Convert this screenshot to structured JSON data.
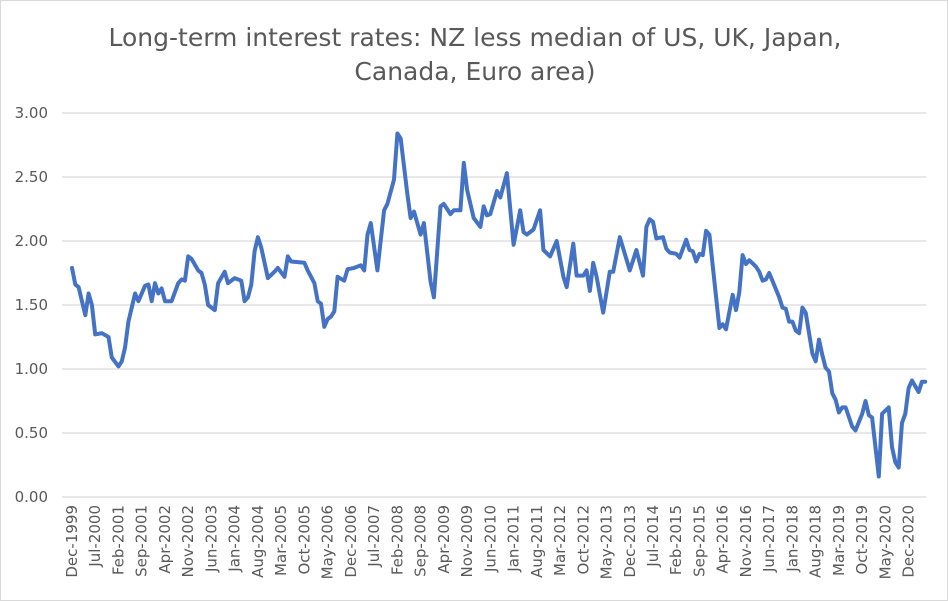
{
  "chart_data": {
    "type": "line",
    "title": "Long-term interest rates: NZ less median of US, UK, Japan, Canada, Euro area)",
    "title_lines": [
      "Long-term interest rates: NZ less median of US, UK, Japan,",
      "Canada, Euro area)"
    ],
    "xlabel": "",
    "ylabel": "",
    "ylim": [
      0,
      3
    ],
    "yticks": [
      "0.00",
      "0.50",
      "1.00",
      "1.50",
      "2.00",
      "2.50",
      "3.00"
    ],
    "xticks": [
      "Dec-1999",
      "Jul-2000",
      "Feb-2001",
      "Sep-2001",
      "Apr-2002",
      "Nov-2002",
      "Jun-2003",
      "Jan-2004",
      "Aug-2004",
      "Mar-2005",
      "Oct-2005",
      "May-2006",
      "Dec-2006",
      "Jul-2007",
      "Feb-2008",
      "Sep-2008",
      "Apr-2009",
      "Nov-2009",
      "Jun-2010",
      "Jan-2011",
      "Aug-2011",
      "Mar-2012",
      "Oct-2012",
      "May-2013",
      "Dec-2013",
      "Jul-2014",
      "Feb-2015",
      "Sep-2015",
      "Apr-2016",
      "Nov-2016",
      "Jun-2017",
      "Jan-2018",
      "Aug-2018",
      "Mar-2019",
      "Oct-2019",
      "May-2020",
      "Dec-2020"
    ],
    "grid": "horizontal",
    "legend": "none",
    "line_color": "#4472c4",
    "series": [
      {
        "points": [
          [
            "1999-12",
            1.79
          ],
          [
            "2000-01",
            1.66
          ],
          [
            "2000-02",
            1.64
          ],
          [
            "2000-04",
            1.42
          ],
          [
            "2000-05",
            1.59
          ],
          [
            "2000-06",
            1.5
          ],
          [
            "2000-07",
            1.27
          ],
          [
            "2000-09",
            1.28
          ],
          [
            "2000-11",
            1.25
          ],
          [
            "2000-12",
            1.09
          ],
          [
            "2001-02",
            1.02
          ],
          [
            "2001-03",
            1.06
          ],
          [
            "2001-04",
            1.17
          ],
          [
            "2001-05",
            1.37
          ],
          [
            "2001-07",
            1.59
          ],
          [
            "2001-08",
            1.53
          ],
          [
            "2001-10",
            1.65
          ],
          [
            "2001-11",
            1.66
          ],
          [
            "2001-12",
            1.53
          ],
          [
            "2002-01",
            1.67
          ],
          [
            "2002-02",
            1.59
          ],
          [
            "2002-03",
            1.63
          ],
          [
            "2002-04",
            1.53
          ],
          [
            "2002-06",
            1.53
          ],
          [
            "2002-08",
            1.67
          ],
          [
            "2002-09",
            1.7
          ],
          [
            "2002-10",
            1.69
          ],
          [
            "2002-11",
            1.88
          ],
          [
            "2002-12",
            1.86
          ],
          [
            "2003-02",
            1.77
          ],
          [
            "2003-03",
            1.75
          ],
          [
            "2003-04",
            1.66
          ],
          [
            "2003-05",
            1.5
          ],
          [
            "2003-07",
            1.46
          ],
          [
            "2003-08",
            1.67
          ],
          [
            "2003-10",
            1.76
          ],
          [
            "2003-11",
            1.67
          ],
          [
            "2004-01",
            1.71
          ],
          [
            "2004-03",
            1.69
          ],
          [
            "2004-04",
            1.53
          ],
          [
            "2004-05",
            1.56
          ],
          [
            "2004-06",
            1.66
          ],
          [
            "2004-07",
            1.92
          ],
          [
            "2004-08",
            2.03
          ],
          [
            "2004-09",
            1.95
          ],
          [
            "2004-11",
            1.71
          ],
          [
            "2005-01",
            1.76
          ],
          [
            "2005-02",
            1.79
          ],
          [
            "2005-04",
            1.72
          ],
          [
            "2005-05",
            1.88
          ],
          [
            "2005-06",
            1.84
          ],
          [
            "2005-10",
            1.83
          ],
          [
            "2005-11",
            1.77
          ],
          [
            "2006-01",
            1.67
          ],
          [
            "2006-02",
            1.53
          ],
          [
            "2006-03",
            1.51
          ],
          [
            "2006-04",
            1.33
          ],
          [
            "2006-05",
            1.39
          ],
          [
            "2006-06",
            1.41
          ],
          [
            "2006-07",
            1.45
          ],
          [
            "2006-08",
            1.72
          ],
          [
            "2006-10",
            1.69
          ],
          [
            "2006-11",
            1.78
          ],
          [
            "2007-01",
            1.79
          ],
          [
            "2007-03",
            1.81
          ],
          [
            "2007-04",
            1.77
          ],
          [
            "2007-05",
            2.05
          ],
          [
            "2007-06",
            2.14
          ],
          [
            "2007-08",
            1.77
          ],
          [
            "2007-10",
            2.24
          ],
          [
            "2007-11",
            2.29
          ],
          [
            "2008-01",
            2.48
          ],
          [
            "2008-02",
            2.84
          ],
          [
            "2008-03",
            2.8
          ],
          [
            "2008-05",
            2.37
          ],
          [
            "2008-06",
            2.18
          ],
          [
            "2008-07",
            2.23
          ],
          [
            "2008-09",
            2.05
          ],
          [
            "2008-10",
            2.14
          ],
          [
            "2008-12",
            1.68
          ],
          [
            "2009-01",
            1.56
          ],
          [
            "2009-03",
            2.27
          ],
          [
            "2009-04",
            2.29
          ],
          [
            "2009-06",
            2.21
          ],
          [
            "2009-07",
            2.24
          ],
          [
            "2009-09",
            2.24
          ],
          [
            "2009-10",
            2.61
          ],
          [
            "2009-11",
            2.4
          ],
          [
            "2010-01",
            2.18
          ],
          [
            "2010-03",
            2.11
          ],
          [
            "2010-04",
            2.27
          ],
          [
            "2010-05",
            2.2
          ],
          [
            "2010-06",
            2.21
          ],
          [
            "2010-08",
            2.39
          ],
          [
            "2010-09",
            2.34
          ],
          [
            "2010-11",
            2.53
          ],
          [
            "2011-01",
            1.97
          ],
          [
            "2011-03",
            2.24
          ],
          [
            "2011-04",
            2.07
          ],
          [
            "2011-05",
            2.05
          ],
          [
            "2011-07",
            2.09
          ],
          [
            "2011-09",
            2.24
          ],
          [
            "2011-10",
            1.93
          ],
          [
            "2011-12",
            1.88
          ],
          [
            "2012-02",
            2.0
          ],
          [
            "2012-04",
            1.72
          ],
          [
            "2012-05",
            1.64
          ],
          [
            "2012-07",
            1.98
          ],
          [
            "2012-08",
            1.73
          ],
          [
            "2012-10",
            1.73
          ],
          [
            "2012-11",
            1.77
          ],
          [
            "2012-12",
            1.61
          ],
          [
            "2013-01",
            1.83
          ],
          [
            "2013-02",
            1.72
          ],
          [
            "2013-04",
            1.44
          ],
          [
            "2013-06",
            1.76
          ],
          [
            "2013-07",
            1.76
          ],
          [
            "2013-09",
            2.03
          ],
          [
            "2013-12",
            1.77
          ],
          [
            "2014-01",
            1.85
          ],
          [
            "2014-02",
            1.93
          ],
          [
            "2014-04",
            1.73
          ],
          [
            "2014-05",
            2.11
          ],
          [
            "2014-06",
            2.17
          ],
          [
            "2014-07",
            2.15
          ],
          [
            "2014-08",
            2.02
          ],
          [
            "2014-10",
            2.03
          ],
          [
            "2014-11",
            1.94
          ],
          [
            "2014-12",
            1.91
          ],
          [
            "2015-02",
            1.9
          ],
          [
            "2015-03",
            1.87
          ],
          [
            "2015-05",
            2.01
          ],
          [
            "2015-06",
            1.93
          ],
          [
            "2015-07",
            1.92
          ],
          [
            "2015-08",
            1.84
          ],
          [
            "2015-09",
            1.9
          ],
          [
            "2015-10",
            1.89
          ],
          [
            "2015-11",
            2.08
          ],
          [
            "2015-12",
            2.05
          ],
          [
            "2016-03",
            1.32
          ],
          [
            "2016-04",
            1.35
          ],
          [
            "2016-05",
            1.31
          ],
          [
            "2016-07",
            1.58
          ],
          [
            "2016-08",
            1.46
          ],
          [
            "2016-09",
            1.6
          ],
          [
            "2016-10",
            1.89
          ],
          [
            "2016-11",
            1.82
          ],
          [
            "2016-12",
            1.85
          ],
          [
            "2017-02",
            1.8
          ],
          [
            "2017-03",
            1.76
          ],
          [
            "2017-04",
            1.69
          ],
          [
            "2017-05",
            1.7
          ],
          [
            "2017-06",
            1.75
          ],
          [
            "2017-09",
            1.56
          ],
          [
            "2017-10",
            1.48
          ],
          [
            "2017-11",
            1.47
          ],
          [
            "2017-12",
            1.37
          ],
          [
            "2018-01",
            1.37
          ],
          [
            "2018-02",
            1.3
          ],
          [
            "2018-03",
            1.28
          ],
          [
            "2018-04",
            1.48
          ],
          [
            "2018-05",
            1.44
          ],
          [
            "2018-07",
            1.12
          ],
          [
            "2018-08",
            1.06
          ],
          [
            "2018-09",
            1.23
          ],
          [
            "2018-10",
            1.11
          ],
          [
            "2018-11",
            1.01
          ],
          [
            "2018-12",
            0.98
          ],
          [
            "2019-01",
            0.81
          ],
          [
            "2019-02",
            0.76
          ],
          [
            "2019-03",
            0.66
          ],
          [
            "2019-04",
            0.7
          ],
          [
            "2019-05",
            0.7
          ],
          [
            "2019-07",
            0.55
          ],
          [
            "2019-08",
            0.52
          ],
          [
            "2019-10",
            0.65
          ],
          [
            "2019-11",
            0.75
          ],
          [
            "2019-12",
            0.64
          ],
          [
            "2020-01",
            0.62
          ],
          [
            "2020-03",
            0.16
          ],
          [
            "2020-04",
            0.65
          ],
          [
            "2020-06",
            0.7
          ],
          [
            "2020-07",
            0.39
          ],
          [
            "2020-08",
            0.27
          ],
          [
            "2020-09",
            0.23
          ],
          [
            "2020-10",
            0.58
          ],
          [
            "2020-11",
            0.65
          ],
          [
            "2020-12",
            0.85
          ],
          [
            "2021-01",
            0.91
          ],
          [
            "2021-03",
            0.82
          ],
          [
            "2021-04",
            0.9
          ],
          [
            "2021-05",
            0.9
          ]
        ]
      }
    ]
  }
}
